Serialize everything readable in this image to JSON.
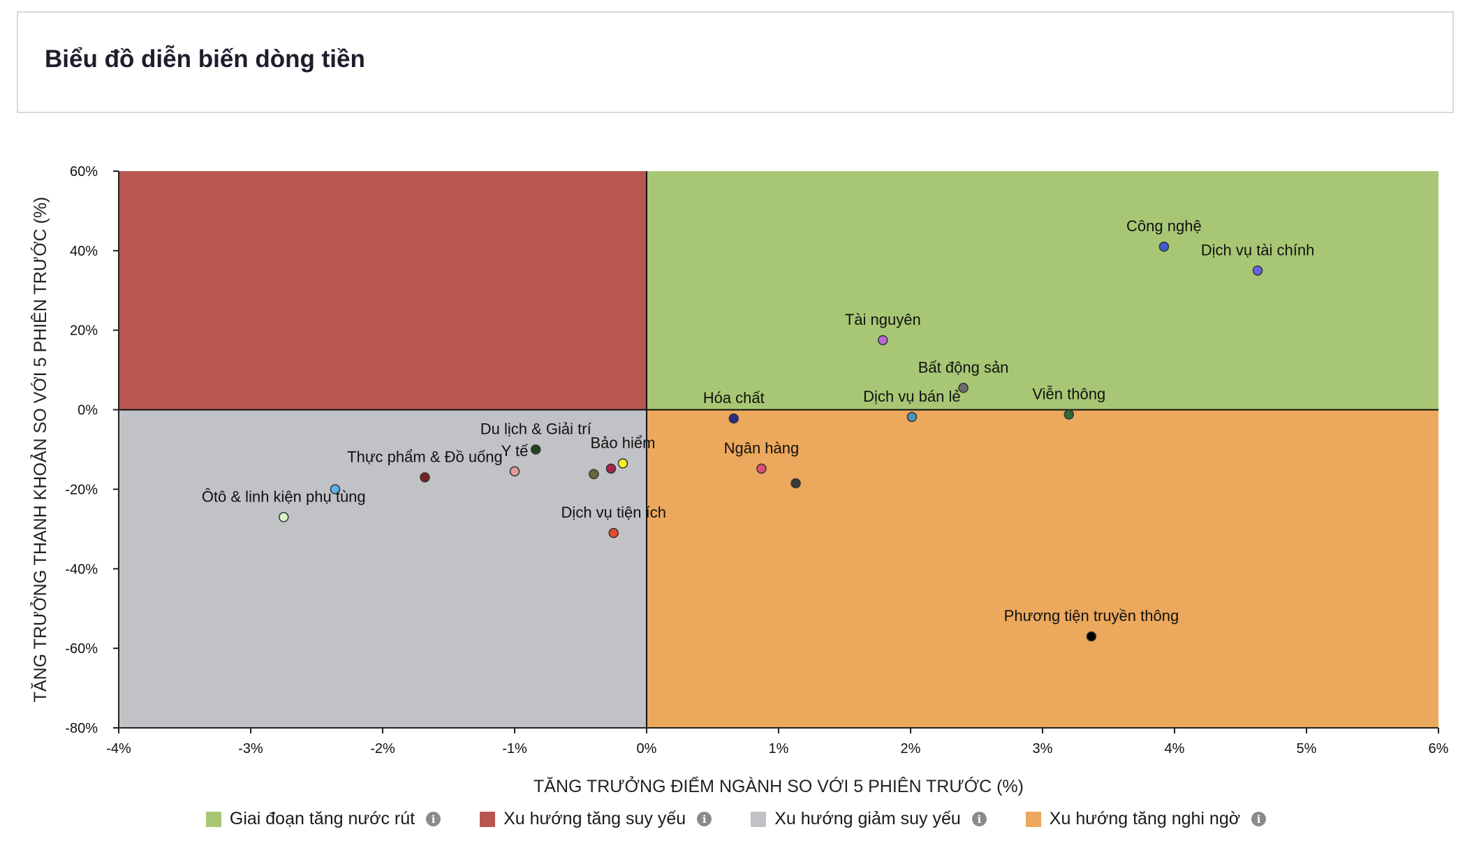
{
  "header": {
    "title": "Biểu đồ diễn biến dòng tiền"
  },
  "chart_data": {
    "type": "scatter",
    "title": "Biểu đồ diễn biến dòng tiền",
    "xlabel": "TĂNG TRƯỞNG ĐIỂM NGÀNH SO VỚI 5 PHIÊN TRƯỚC (%)",
    "ylabel": "TĂNG TRƯỞNG THANH KHOẢN SO VỚI 5 PHIÊN TRƯỚC (%)",
    "xlim": [
      -4,
      6
    ],
    "ylim": [
      -80,
      60
    ],
    "x_ticks": [
      -4,
      -3,
      -2,
      -1,
      0,
      1,
      2,
      3,
      4,
      5,
      6
    ],
    "y_ticks": [
      60,
      40,
      20,
      0,
      -20,
      -40,
      -60,
      -80
    ],
    "x_tick_labels": [
      "-4%",
      "-3%",
      "-2%",
      "-1%",
      "0%",
      "1%",
      "2%",
      "3%",
      "4%",
      "5%",
      "6%"
    ],
    "y_tick_labels": [
      "60%",
      "40%",
      "20%",
      "0%",
      "-20%",
      "-40%",
      "-60%",
      "-80%"
    ],
    "quadrants": [
      {
        "name": "Giai đoạn tăng nước rút",
        "x_range": [
          0,
          6
        ],
        "y_range": [
          0,
          60
        ],
        "color": "#a8c774"
      },
      {
        "name": "Xu hướng tăng suy yếu",
        "x_range": [
          -4,
          0
        ],
        "y_range": [
          0,
          60
        ],
        "color": "#b85650"
      },
      {
        "name": "Xu hướng giảm suy yếu",
        "x_range": [
          -4,
          0
        ],
        "y_range": [
          -80,
          0
        ],
        "color": "#c1c2c6"
      },
      {
        "name": "Xu hướng tăng nghi ngờ",
        "x_range": [
          0,
          6
        ],
        "y_range": [
          -80,
          0
        ],
        "color": "#eca85c"
      }
    ],
    "points": [
      {
        "label": "Công nghệ",
        "x": 3.92,
        "y": 41,
        "color": "#3f5fcf"
      },
      {
        "label": "Dịch vụ tài chính",
        "x": 4.63,
        "y": 35,
        "color": "#6a63e0"
      },
      {
        "label": "Tài nguyên",
        "x": 1.79,
        "y": 17.5,
        "color": "#b56ad8"
      },
      {
        "label": "Bất động sản",
        "x": 2.4,
        "y": 5.5,
        "color": "#6b6b6b"
      },
      {
        "label": "Viễn thông",
        "x": 3.2,
        "y": -1.2,
        "color": "#2e6b35"
      },
      {
        "label": "Dịch vụ bán lẻ",
        "x": 2.01,
        "y": -1.8,
        "color": "#4d93b8"
      },
      {
        "label": "Hóa chất",
        "x": 0.66,
        "y": -2.2,
        "color": "#2c2c80"
      },
      {
        "label": "Ngân hàng",
        "x": 0.87,
        "y": -14.8,
        "color": "#e04f72"
      },
      {
        "label": "",
        "x": 1.13,
        "y": -18.5,
        "color": "#3b3b3b"
      },
      {
        "label": "Phương tiện truyền thông",
        "x": 3.37,
        "y": -57,
        "color": "#000000"
      },
      {
        "label": "Du lịch & Giải trí",
        "x": -0.84,
        "y": -10,
        "color": "#22421f"
      },
      {
        "label": "Y tế",
        "x": -1.0,
        "y": -15.5,
        "color": "#e39a9a"
      },
      {
        "label": "Bảo hiểm",
        "x": -0.18,
        "y": -13.5,
        "color": "#f5f21f"
      },
      {
        "label": "",
        "x": -0.27,
        "y": -14.8,
        "color": "#a8244a"
      },
      {
        "label": "",
        "x": -0.4,
        "y": -16.2,
        "color": "#6b6641"
      },
      {
        "label": "Dịch vụ tiện ích",
        "x": -0.25,
        "y": -31,
        "color": "#e54b2b"
      },
      {
        "label": "Thực phẩm & Đồ uống",
        "x": -1.68,
        "y": -17,
        "color": "#7a1f1f"
      },
      {
        "label": "",
        "x": -2.36,
        "y": -20,
        "color": "#5fb0e6"
      },
      {
        "label": "Ôtô & linh kiện phụ tùng",
        "x": -2.75,
        "y": -27,
        "color": "#d8f5c8"
      }
    ]
  },
  "legend": [
    {
      "label": "Giai đoạn tăng nước rút",
      "color": "#a8c774",
      "icon": "info-icon"
    },
    {
      "label": "Xu hướng tăng suy yếu",
      "color": "#b85650",
      "icon": "info-icon"
    },
    {
      "label": "Xu hướng giảm suy yếu",
      "color": "#c1c2c6",
      "icon": "info-icon"
    },
    {
      "label": "Xu hướng tăng nghi ngờ",
      "color": "#eca85c",
      "icon": "info-icon"
    }
  ]
}
